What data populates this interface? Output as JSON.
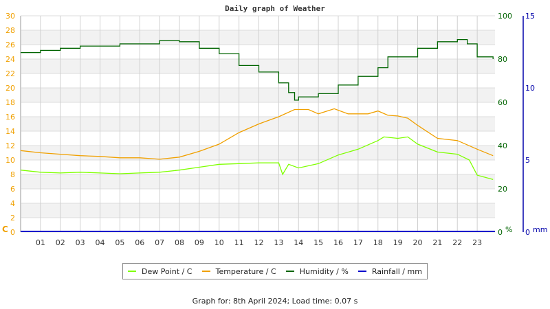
{
  "chart_data": {
    "type": "line",
    "title": "Daily graph of Weather",
    "x_ticks": [
      "01",
      "02",
      "03",
      "04",
      "05",
      "06",
      "07",
      "08",
      "09",
      "10",
      "11",
      "12",
      "13",
      "14",
      "15",
      "16",
      "17",
      "18",
      "19",
      "20",
      "21",
      "22",
      "23"
    ],
    "xlim": [
      0,
      24
    ],
    "axes": {
      "left": {
        "label": "C",
        "ticks": [
          "0",
          "2",
          "4",
          "6",
          "8",
          "10",
          "12",
          "14",
          "16",
          "18",
          "20",
          "22",
          "24",
          "26",
          "28",
          "30"
        ],
        "range": [
          0,
          30
        ],
        "color": "#f0a000"
      },
      "right1": {
        "label": "%",
        "ticks": [
          "0",
          "20",
          "40",
          "60",
          "80",
          "100"
        ],
        "range": [
          0,
          100
        ],
        "color": "#006400"
      },
      "right2": {
        "label": "mm",
        "ticks": [
          "0",
          "5",
          "10",
          "15"
        ],
        "range": [
          0,
          15
        ],
        "color": "#0000aa"
      }
    },
    "series": [
      {
        "name": "Dew Point / C",
        "color": "#7fff00",
        "axis": "left",
        "x": [
          0,
          1,
          2,
          3,
          4,
          5,
          6,
          7,
          8,
          9,
          10,
          11,
          12,
          13,
          13.2,
          13.5,
          14,
          15,
          16,
          17,
          18,
          18.3,
          19,
          19.5,
          20,
          21,
          22,
          22.6,
          23,
          23.8
        ],
        "values": [
          8.6,
          8.3,
          8.2,
          8.3,
          8.2,
          8.1,
          8.2,
          8.3,
          8.6,
          9.0,
          9.4,
          9.5,
          9.6,
          9.6,
          8.0,
          9.4,
          8.9,
          9.5,
          10.7,
          11.5,
          12.7,
          13.2,
          13.0,
          13.2,
          12.2,
          11.1,
          10.8,
          10.0,
          7.9,
          7.3
        ]
      },
      {
        "name": "Temperature / C",
        "color": "#f0a000",
        "axis": "left",
        "x": [
          0,
          1,
          2,
          3,
          4,
          5,
          6,
          7,
          8,
          9,
          10,
          11,
          12,
          13,
          13.8,
          14.5,
          15,
          15.8,
          16.5,
          17.5,
          18,
          18.5,
          19,
          19.5,
          20,
          21,
          22,
          23,
          23.8
        ],
        "values": [
          11.3,
          11.0,
          10.8,
          10.6,
          10.5,
          10.3,
          10.3,
          10.1,
          10.4,
          11.2,
          12.2,
          13.8,
          15.0,
          16.0,
          17.0,
          17.0,
          16.4,
          17.1,
          16.4,
          16.4,
          16.8,
          16.2,
          16.1,
          15.8,
          14.8,
          13.0,
          12.7,
          11.5,
          10.6
        ]
      },
      {
        "name": "Humidity / %",
        "color": "#006400",
        "axis": "right1",
        "x": [
          0,
          1,
          2,
          3,
          4,
          5,
          6,
          7,
          8,
          9,
          10,
          11,
          12,
          13,
          13.5,
          13.8,
          14,
          15,
          16,
          17,
          18,
          18.5,
          19,
          19.6,
          20,
          21,
          22,
          22.5,
          23,
          23.8
        ],
        "values": [
          83,
          84,
          85,
          86,
          86,
          87,
          87,
          88.5,
          88,
          85,
          82.5,
          77,
          74,
          69,
          64.5,
          61,
          62.5,
          64,
          68,
          72,
          76,
          81,
          81,
          81,
          85,
          88,
          89,
          87,
          81,
          80
        ]
      },
      {
        "name": "Rainfall / mm",
        "color": "#0000cc",
        "axis": "right2",
        "x": [
          0,
          24
        ],
        "values": [
          0,
          0
        ]
      }
    ]
  },
  "footer": {
    "text": "Graph for: 8th April 2024; Load time: 0.07 s"
  },
  "legend": [
    {
      "label": "Dew Point / C",
      "color": "#7fff00"
    },
    {
      "label": "Temperature / C",
      "color": "#f0a000"
    },
    {
      "label": "Humidity / %",
      "color": "#006400"
    },
    {
      "label": "Rainfall / mm",
      "color": "#0000cc"
    }
  ]
}
